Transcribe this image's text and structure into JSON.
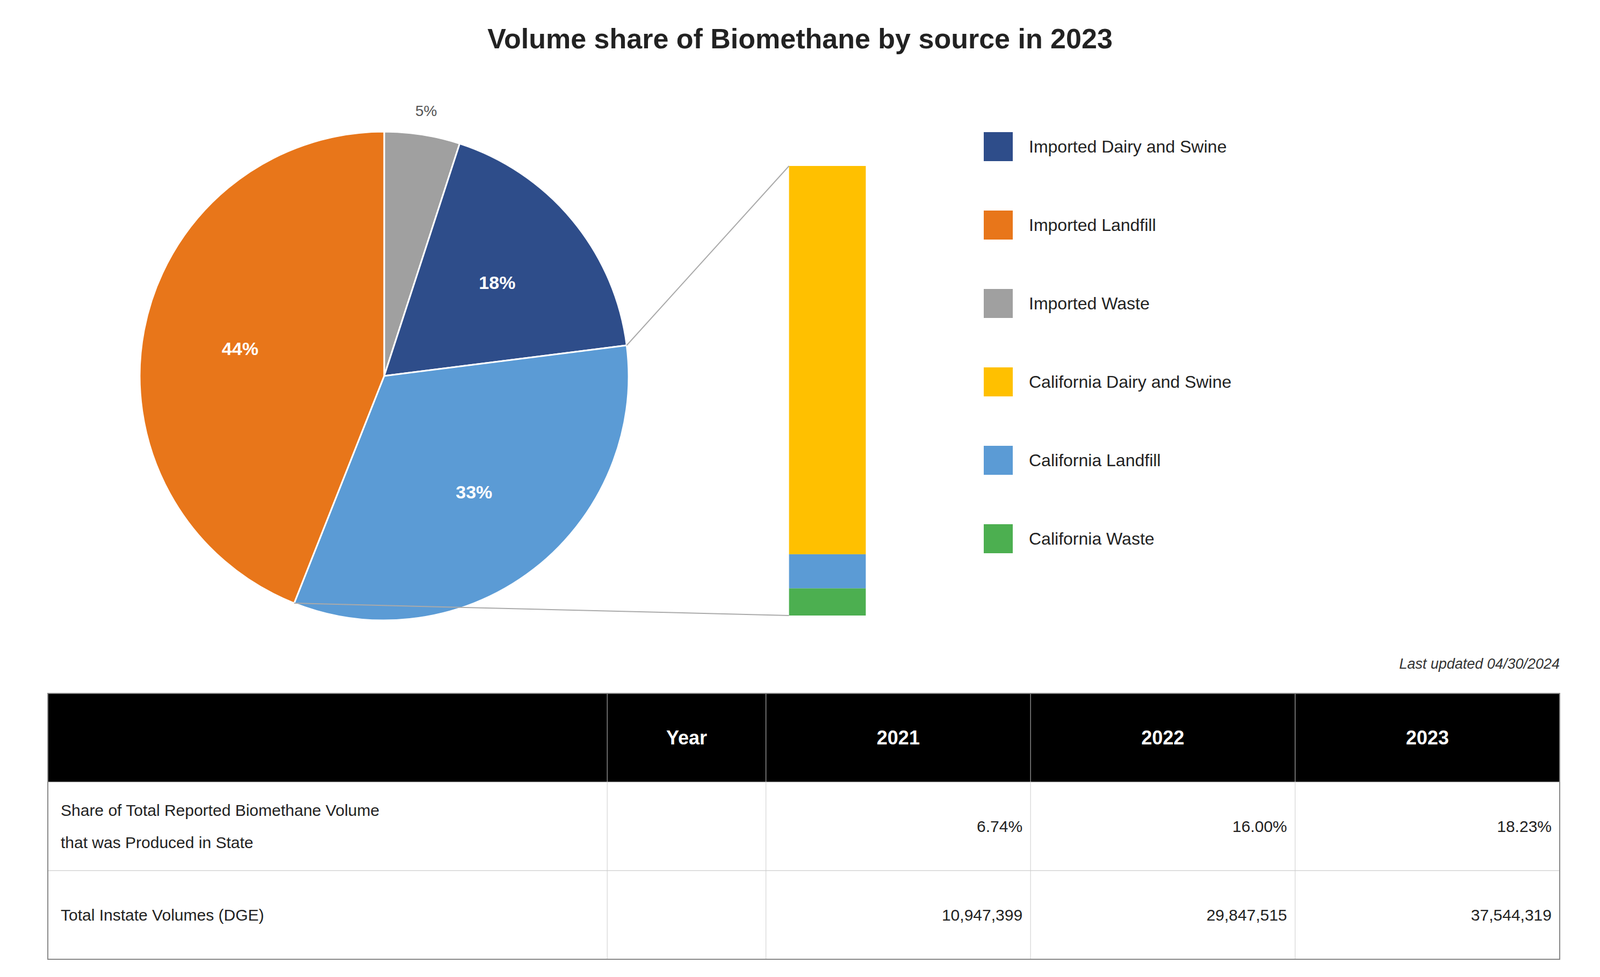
{
  "chart_data": [
    {
      "type": "pie",
      "title": "Volume share of Biomethane by source in 2023",
      "values": [
        5,
        18,
        33,
        44
      ],
      "value_labels": [
        "5%",
        "18%",
        "33%",
        "44%"
      ],
      "colors": [
        "#A0A0A0",
        "#2E4D8A",
        "#5B9BD5",
        "#E8761A"
      ],
      "data_labels": true
    },
    {
      "type": "bar",
      "stacked": true,
      "categories": [
        null
      ],
      "series": [
        {
          "color": "#4CAF50",
          "values": [
            2.0
          ]
        },
        {
          "color": "#5B9BD5",
          "values": [
            2.5
          ]
        },
        {
          "color": "#FFC000",
          "values": [
            28.5
          ]
        }
      ],
      "ylim": [
        0,
        33
      ],
      "tick_labels": false
    }
  ],
  "legend_entries": [
    {
      "name": "Imported Dairy and Swine",
      "color": "#2E4D8A"
    },
    {
      "name": "Imported Landfill",
      "color": "#E8761A"
    },
    {
      "name": "Imported Waste",
      "color": "#A0A0A0"
    },
    {
      "name": "California Dairy and Swine",
      "color": "#FFC000"
    },
    {
      "name": "California Landfill",
      "color": "#5B9BD5"
    },
    {
      "name": "California Waste",
      "color": "#4CAF50"
    }
  ],
  "last_updated": "Last updated 04/30/2024",
  "table": {
    "header": [
      "Year",
      "2021",
      "2022",
      "2023"
    ],
    "rows": [
      {
        "label_lines": [
          "Share of Total Reported Biomethane Volume",
          "that was Produced in State"
        ],
        "values": [
          "6.74%",
          "16.00%",
          "18.23%"
        ]
      },
      {
        "label_lines": [
          "Total Instate Volumes (DGE)"
        ],
        "values": [
          "10,947,399",
          "29,847,515",
          "37,544,319"
        ]
      }
    ]
  }
}
